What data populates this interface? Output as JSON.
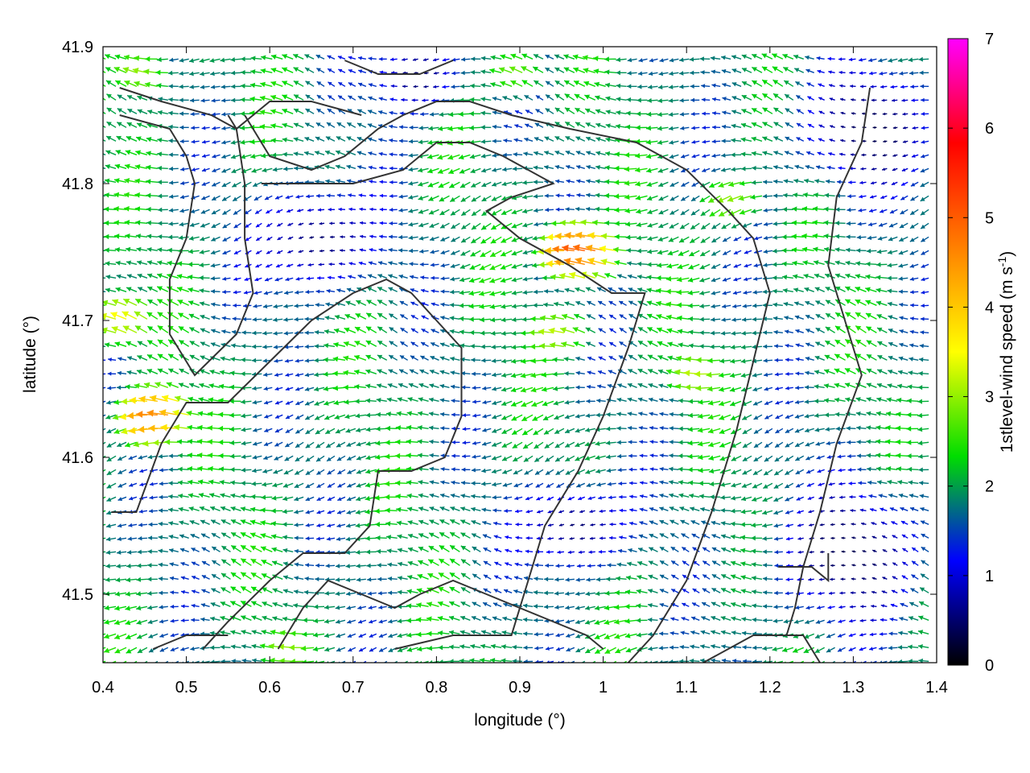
{
  "chart_data": {
    "type": "vector-field",
    "xlabel": "longitude (°)",
    "ylabel": "latitude (°)",
    "colorbar_label": "1stlevel-wind speed (m s",
    "colorbar_label_sup": "-1",
    "colorbar_label_close": ")",
    "xlim": [
      0.4,
      1.4
    ],
    "ylim": [
      41.45,
      41.9
    ],
    "x_ticks": [
      "0.4",
      "0.5",
      "0.6",
      "0.7",
      "0.8",
      "0.9",
      "1",
      "1.1",
      "1.2",
      "1.3",
      "1.4"
    ],
    "y_ticks": [
      "41.5",
      "41.6",
      "41.7",
      "41.8",
      "41.9"
    ],
    "colorbar_range": [
      0,
      7
    ],
    "colorbar_ticks": [
      "0",
      "1",
      "2",
      "3",
      "4",
      "5",
      "6",
      "7"
    ],
    "colormap": [
      "#000000",
      "#0000ff",
      "#00dd00",
      "#ffff00",
      "#ff8000",
      "#ff0000",
      "#ff00ff"
    ],
    "grid": false,
    "coastline_color": "#333333",
    "predominant_wind_direction": "from east (arrows point west)",
    "grid_spacing_deg": {
      "dlon": 0.0125,
      "dlat": 0.01
    },
    "speed_hotspots": [
      {
        "lon": 0.47,
        "lat": 41.63,
        "speed": 4.6
      },
      {
        "lon": 0.43,
        "lat": 41.7,
        "speed": 3.5
      },
      {
        "lon": 0.98,
        "lat": 41.75,
        "speed": 5.0
      },
      {
        "lon": 0.95,
        "lat": 41.69,
        "speed": 3.2
      },
      {
        "lon": 1.16,
        "lat": 41.79,
        "speed": 3.0
      },
      {
        "lon": 1.12,
        "lat": 41.66,
        "speed": 3.2
      },
      {
        "lon": 0.63,
        "lat": 41.46,
        "speed": 3.0
      },
      {
        "lon": 0.45,
        "lat": 41.88,
        "speed": 3.0
      },
      {
        "lon": 0.9,
        "lat": 41.88,
        "speed": 2.8
      }
    ],
    "calm_zones": [
      {
        "lon": 0.66,
        "lat": 41.76,
        "radius": 0.07
      },
      {
        "lon": 0.97,
        "lat": 41.55,
        "radius": 0.06
      },
      {
        "lon": 1.3,
        "lat": 41.53,
        "radius": 0.09
      },
      {
        "lon": 1.32,
        "lat": 41.84,
        "radius": 0.08
      },
      {
        "lon": 0.78,
        "lat": 41.88,
        "radius": 0.05
      }
    ],
    "contours": [
      [
        [
          0.42,
          41.87
        ],
        [
          0.47,
          41.86
        ],
        [
          0.53,
          41.85
        ],
        [
          0.56,
          41.84
        ],
        [
          0.6,
          41.86
        ],
        [
          0.65,
          41.86
        ],
        [
          0.71,
          41.85
        ]
      ],
      [
        [
          0.42,
          41.85
        ],
        [
          0.48,
          41.84
        ],
        [
          0.5,
          41.82
        ],
        [
          0.51,
          41.8
        ],
        [
          0.5,
          41.76
        ],
        [
          0.48,
          41.73
        ],
        [
          0.48,
          41.69
        ],
        [
          0.51,
          41.66
        ],
        [
          0.56,
          41.69
        ],
        [
          0.58,
          41.72
        ],
        [
          0.57,
          41.76
        ],
        [
          0.57,
          41.8
        ],
        [
          0.56,
          41.84
        ],
        [
          0.55,
          41.85
        ]
      ],
      [
        [
          0.57,
          41.85
        ],
        [
          0.6,
          41.82
        ],
        [
          0.65,
          41.81
        ],
        [
          0.69,
          41.82
        ],
        [
          0.73,
          41.84
        ],
        [
          0.76,
          41.85
        ],
        [
          0.8,
          41.86
        ],
        [
          0.84,
          41.86
        ],
        [
          0.89,
          41.85
        ],
        [
          0.96,
          41.84
        ],
        [
          1.04,
          41.83
        ],
        [
          1.1,
          41.81
        ],
        [
          1.15,
          41.78
        ],
        [
          1.18,
          41.76
        ],
        [
          1.2,
          41.72
        ],
        [
          1.18,
          41.67
        ],
        [
          1.16,
          41.62
        ],
        [
          1.13,
          41.56
        ],
        [
          1.1,
          41.51
        ],
        [
          1.06,
          41.47
        ],
        [
          1.03,
          41.45
        ]
      ],
      [
        [
          0.59,
          41.8
        ],
        [
          0.64,
          41.8
        ],
        [
          0.7,
          41.8
        ],
        [
          0.76,
          41.81
        ],
        [
          0.8,
          41.83
        ],
        [
          0.84,
          41.83
        ],
        [
          0.88,
          41.82
        ],
        [
          0.91,
          41.81
        ],
        [
          0.94,
          41.8
        ],
        [
          0.89,
          41.79
        ],
        [
          0.86,
          41.78
        ],
        [
          0.9,
          41.76
        ],
        [
          0.96,
          41.74
        ],
        [
          1.01,
          41.72
        ],
        [
          1.05,
          41.72
        ],
        [
          1.03,
          41.68
        ],
        [
          1.0,
          41.63
        ],
        [
          0.97,
          41.59
        ],
        [
          0.93,
          41.55
        ],
        [
          0.91,
          41.51
        ],
        [
          0.89,
          41.47
        ],
        [
          0.82,
          41.47
        ],
        [
          0.75,
          41.46
        ]
      ],
      [
        [
          0.41,
          41.56
        ],
        [
          0.44,
          41.56
        ],
        [
          0.47,
          41.61
        ],
        [
          0.5,
          41.64
        ],
        [
          0.55,
          41.64
        ],
        [
          0.6,
          41.67
        ],
        [
          0.65,
          41.7
        ],
        [
          0.7,
          41.72
        ],
        [
          0.74,
          41.73
        ],
        [
          0.77,
          41.72
        ],
        [
          0.8,
          41.7
        ],
        [
          0.83,
          41.68
        ],
        [
          0.83,
          41.63
        ],
        [
          0.81,
          41.6
        ],
        [
          0.77,
          41.59
        ],
        [
          0.73,
          41.59
        ],
        [
          0.72,
          41.55
        ],
        [
          0.69,
          41.53
        ],
        [
          0.64,
          41.53
        ],
        [
          0.6,
          41.51
        ],
        [
          0.55,
          41.48
        ],
        [
          0.52,
          41.46
        ]
      ],
      [
        [
          1.32,
          41.87
        ],
        [
          1.31,
          41.83
        ],
        [
          1.28,
          41.79
        ],
        [
          1.27,
          41.74
        ],
        [
          1.29,
          41.7
        ],
        [
          1.31,
          41.66
        ],
        [
          1.28,
          41.61
        ],
        [
          1.26,
          41.56
        ],
        [
          1.24,
          41.52
        ],
        [
          1.23,
          41.49
        ],
        [
          1.22,
          41.47
        ]
      ],
      [
        [
          1.12,
          41.45
        ],
        [
          1.18,
          41.47
        ],
        [
          1.24,
          41.47
        ],
        [
          1.26,
          41.45
        ]
      ],
      [
        [
          0.61,
          41.46
        ],
        [
          0.64,
          41.49
        ],
        [
          0.67,
          41.51
        ],
        [
          0.71,
          41.5
        ],
        [
          0.75,
          41.49
        ],
        [
          0.78,
          41.5
        ],
        [
          0.82,
          41.51
        ],
        [
          0.86,
          41.5
        ],
        [
          0.9,
          41.49
        ],
        [
          0.94,
          41.48
        ],
        [
          0.98,
          41.47
        ],
        [
          1.0,
          41.46
        ]
      ],
      [
        [
          0.55,
          41.47
        ],
        [
          0.5,
          41.47
        ],
        [
          0.46,
          41.46
        ]
      ],
      [
        [
          1.21,
          41.52
        ],
        [
          1.25,
          41.52
        ],
        [
          1.27,
          41.51
        ],
        [
          1.27,
          41.53
        ]
      ],
      [
        [
          0.69,
          41.89
        ],
        [
          0.73,
          41.88
        ],
        [
          0.78,
          41.88
        ],
        [
          0.82,
          41.89
        ]
      ]
    ]
  }
}
